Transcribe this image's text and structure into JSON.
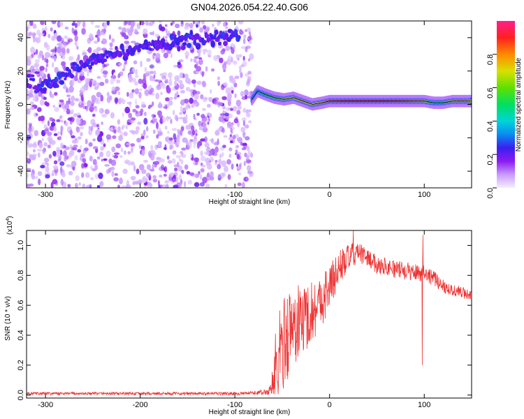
{
  "title": "GN04.2026.054.22.40.G06",
  "chart_data": [
    {
      "type": "heatmap",
      "title": "GN04.2026.054.22.40.G06",
      "xlabel": "Height of straight line (km)",
      "ylabel": "Frequency (Hz)",
      "xlim": [
        -320,
        150
      ],
      "ylim": [
        -50,
        50
      ],
      "x_ticks": [
        -300,
        -200,
        -100,
        0,
        100
      ],
      "y_ticks": [
        -40,
        -20,
        0,
        20,
        40
      ],
      "colorbar": {
        "label": "Normalized spectral amplitude",
        "range": [
          0.0,
          1.0
        ],
        "ticks": [
          0.0,
          0.2,
          0.4,
          0.6,
          0.8
        ],
        "colors": [
          "#e8ddff",
          "#b070ff",
          "#7a12ee",
          "#2a20ee",
          "#00b8f0",
          "#00e08a",
          "#40e000",
          "#d8e000",
          "#ff8c00",
          "#ff2020",
          "#ff1e8c"
        ]
      },
      "features": {
        "noise_region_x": [
          -320,
          -82
        ],
        "tone_trace": {
          "x": [
            -320,
            -305,
            -290,
            -270,
            -250,
            -235,
            -215,
            -195,
            -175,
            -155,
            -135,
            -115,
            -95
          ],
          "y": [
            14,
            10,
            14,
            20,
            25,
            29,
            32,
            35,
            36,
            38,
            39,
            40,
            41
          ]
        },
        "signal_trace": {
          "x": [
            -82,
            -76,
            -68,
            -58,
            -48,
            -38,
            -28,
            -18,
            -8,
            0,
            20,
            40,
            60,
            80,
            100,
            110,
            120,
            130,
            140,
            150
          ],
          "y": [
            3,
            8,
            6,
            4,
            3,
            4,
            2,
            0,
            1,
            2,
            2,
            2,
            2,
            2,
            2,
            1,
            1,
            2,
            2,
            2
          ],
          "amplitude": [
            0.3,
            0.35,
            0.5,
            0.55,
            0.65,
            0.7,
            0.75,
            0.7,
            0.75,
            0.85,
            0.9,
            0.9,
            0.9,
            0.85,
            0.75,
            0.45,
            0.5,
            0.7,
            0.75,
            0.7
          ]
        }
      }
    },
    {
      "type": "line",
      "xlabel": "Height of straight line (km)",
      "ylabel": "SNR (10 * v/v)",
      "y_multiplier": "(x10",
      "y_multiplier_exp": "4",
      "y_multiplier_close": ")",
      "xlim": [
        -320,
        150
      ],
      "ylim": [
        -0.02,
        1.1
      ],
      "x_ticks": [
        -300,
        -200,
        -100,
        0,
        100
      ],
      "y_ticks": [
        0.0,
        0.2,
        0.4,
        0.6,
        0.8,
        1.0
      ],
      "line_color": "#ee3333",
      "series": [
        {
          "envelope": {
            "x": [
              -320,
              -250,
              -150,
              -90,
              -65,
              -62,
              -58,
              -52,
              -45,
              -38,
              -30,
              -20,
              -10,
              0,
              10,
              20,
              30,
              40,
              50,
              60,
              70,
              80,
              90,
              100,
              110,
              120,
              130,
              150
            ],
            "mean": [
              0.01,
              0.01,
              0.01,
              0.01,
              0.02,
              0.05,
              0.12,
              0.3,
              0.4,
              0.45,
              0.5,
              0.55,
              0.62,
              0.72,
              0.85,
              0.92,
              0.95,
              0.92,
              0.87,
              0.86,
              0.84,
              0.83,
              0.82,
              0.82,
              0.78,
              0.73,
              0.7,
              0.67
            ],
            "spread": [
              0.01,
              0.01,
              0.01,
              0.01,
              0.02,
              0.05,
              0.3,
              0.3,
              0.32,
              0.28,
              0.25,
              0.22,
              0.18,
              0.16,
              0.12,
              0.09,
              0.07,
              0.06,
              0.06,
              0.06,
              0.06,
              0.06,
              0.06,
              0.06,
              0.05,
              0.05,
              0.04,
              0.04
            ]
          },
          "spikes": [
            {
              "x": 98,
              "y": 0.2
            },
            {
              "x": 98.5,
              "y": 1.07
            },
            {
              "x": 25,
              "y": 1.1
            }
          ]
        }
      ]
    }
  ]
}
